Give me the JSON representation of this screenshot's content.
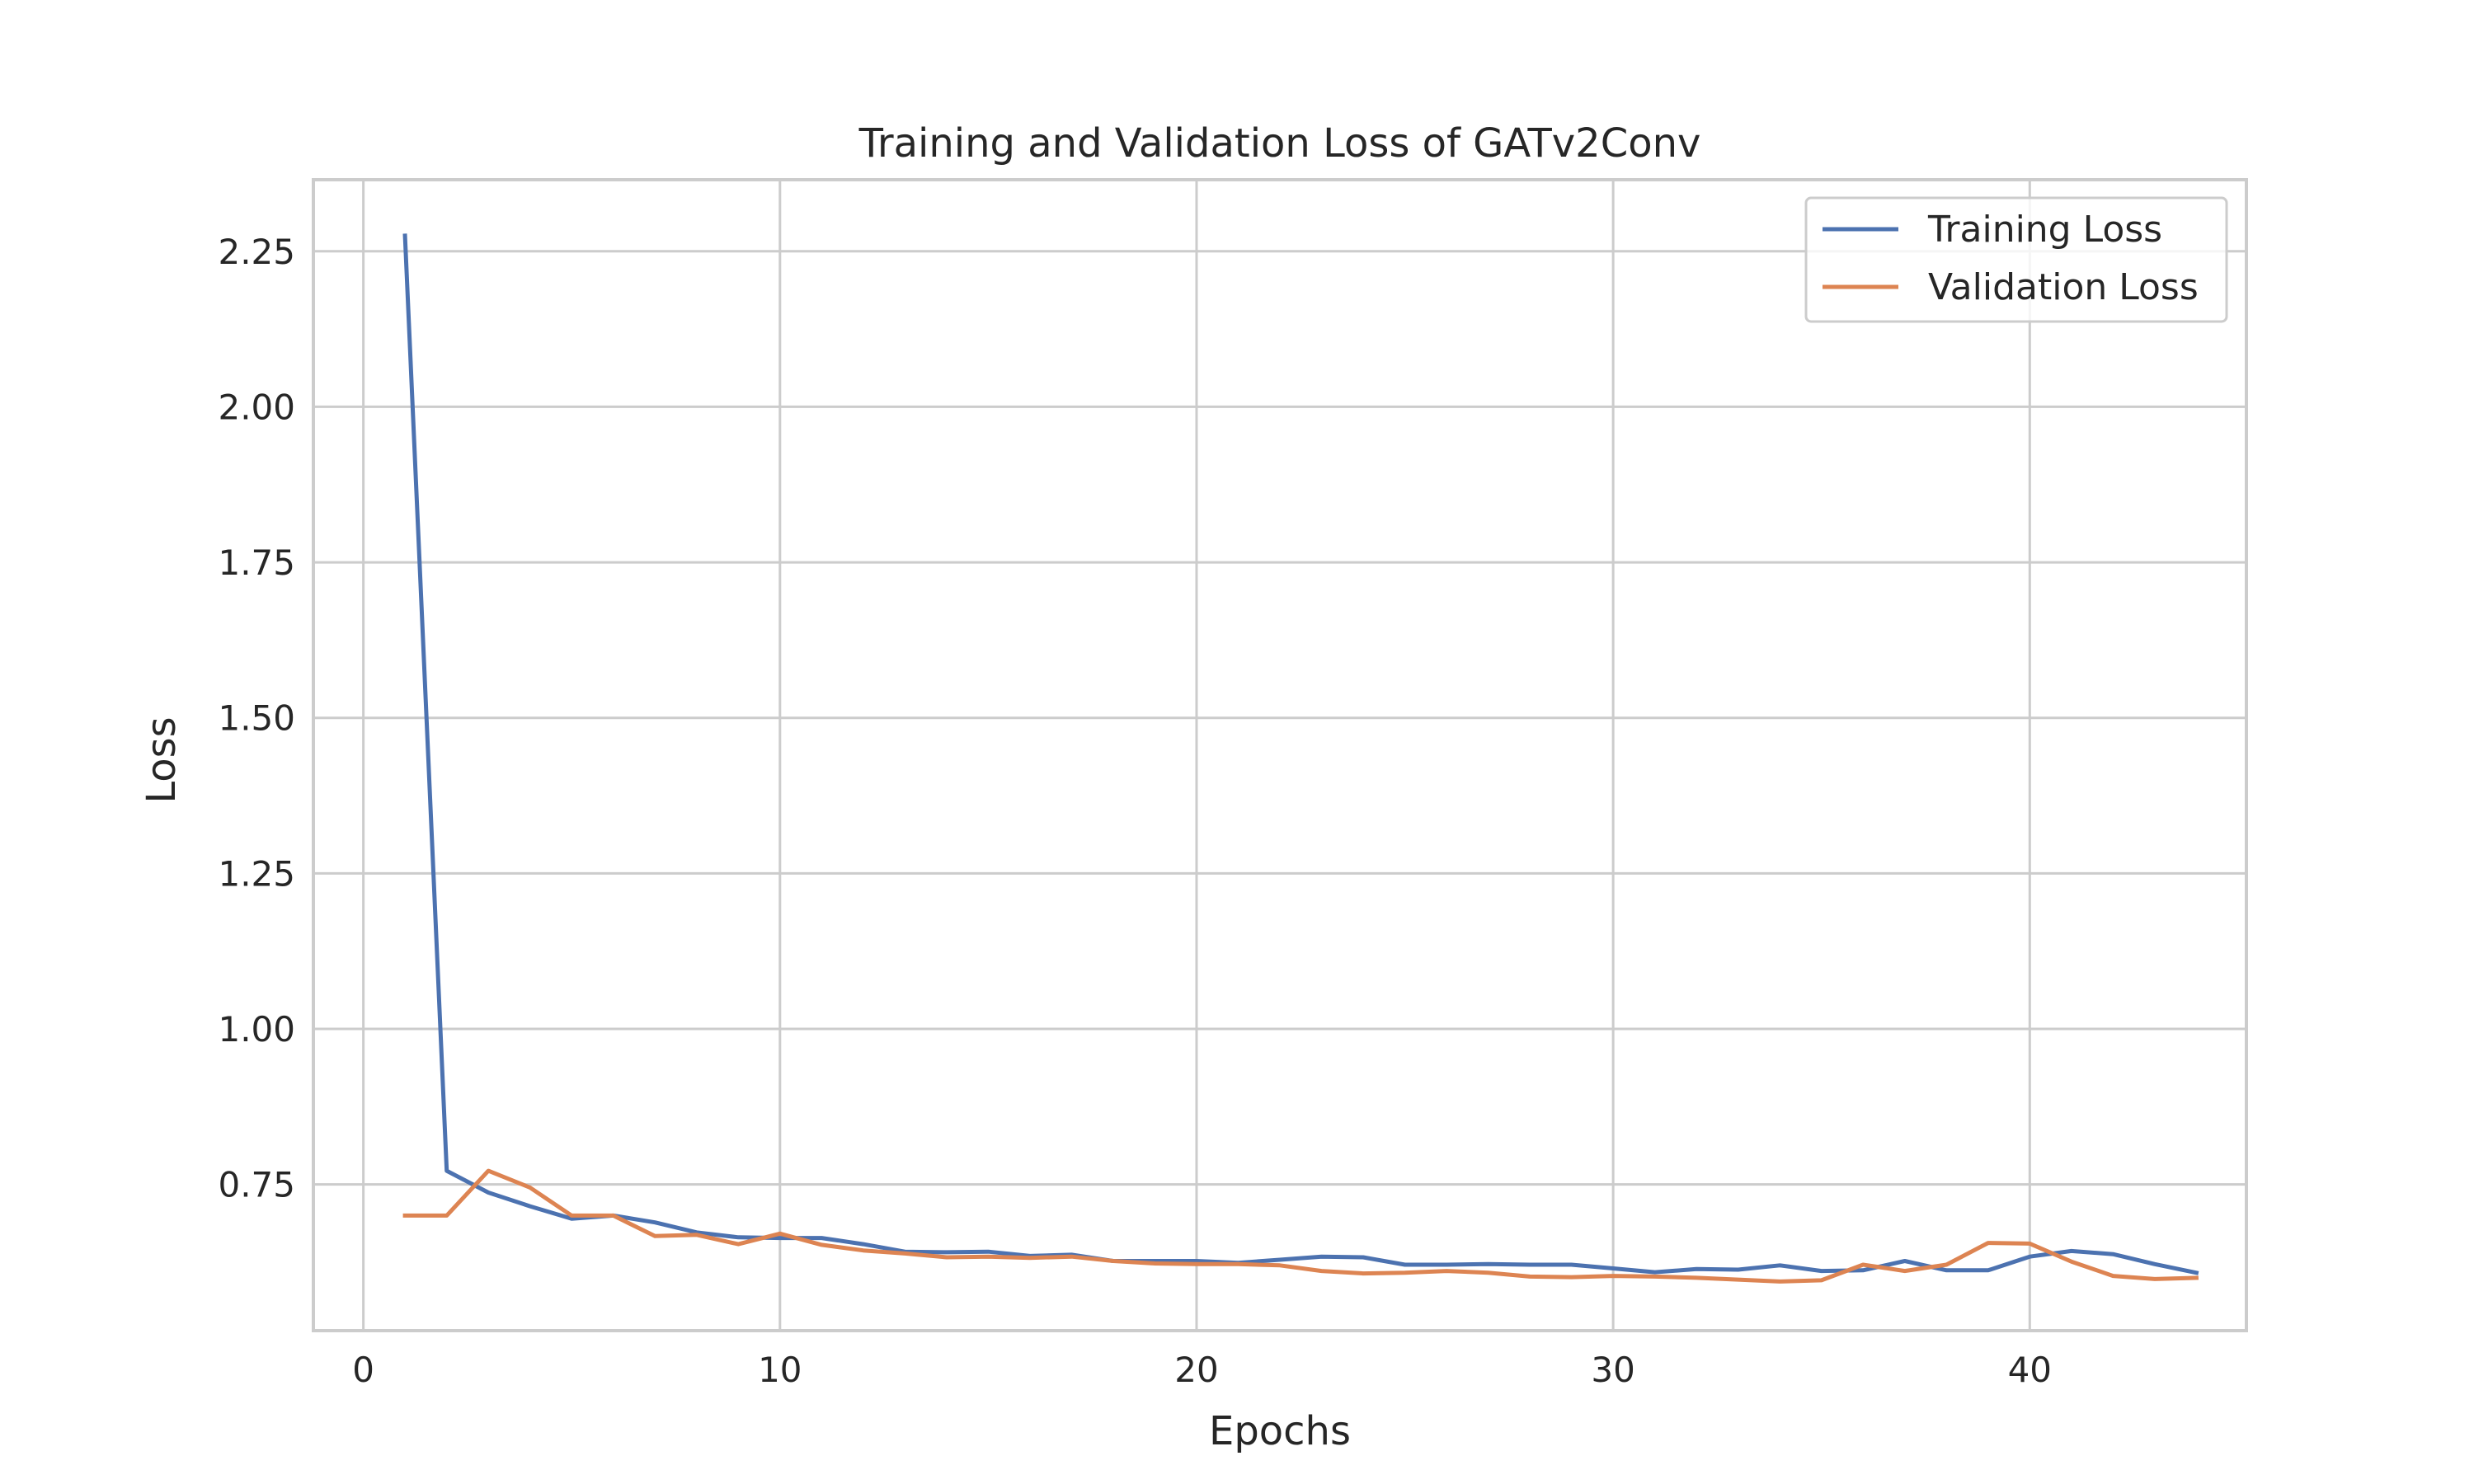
{
  "chart_data": {
    "type": "line",
    "title": "Training and Validation Loss of GATv2Conv",
    "xlabel": "Epochs",
    "ylabel": "Loss",
    "xlim": [
      -1.2,
      45.2
    ],
    "ylim": [
      0.515,
      2.365
    ],
    "xticks": [
      0,
      10,
      20,
      30,
      40
    ],
    "xtick_labels": [
      "0",
      "10",
      "20",
      "30",
      "40"
    ],
    "yticks": [
      0.75,
      1.0,
      1.25,
      1.5,
      1.75,
      2.0,
      2.25
    ],
    "ytick_labels": [
      "0.75",
      "1.00",
      "1.25",
      "1.50",
      "1.75",
      "2.00",
      "2.25"
    ],
    "grid": true,
    "legend_position": "top-right",
    "x": [
      1,
      2,
      3,
      4,
      5,
      6,
      7,
      8,
      9,
      10,
      11,
      12,
      13,
      14,
      15,
      16,
      17,
      18,
      19,
      20,
      21,
      22,
      23,
      24,
      25,
      26,
      27,
      28,
      29,
      30,
      31,
      32,
      33,
      34,
      35,
      36,
      37,
      38,
      39,
      40,
      41,
      42,
      43,
      44
    ],
    "series": [
      {
        "name": "Training Loss",
        "color": "#4c72b0",
        "values": [
          2.275,
          0.772,
          0.737,
          0.715,
          0.695,
          0.7,
          0.689,
          0.673,
          0.665,
          0.664,
          0.664,
          0.654,
          0.642,
          0.641,
          0.642,
          0.635,
          0.637,
          0.627,
          0.627,
          0.627,
          0.624,
          0.629,
          0.634,
          0.633,
          0.621,
          0.621,
          0.622,
          0.621,
          0.621,
          0.615,
          0.609,
          0.614,
          0.613,
          0.62,
          0.611,
          0.612,
          0.627,
          0.612,
          0.612,
          0.634,
          0.643,
          0.638,
          0.622,
          0.608
        ]
      },
      {
        "name": "Validation Loss",
        "color": "#dd8452",
        "values": [
          0.7,
          0.7,
          0.772,
          0.745,
          0.7,
          0.7,
          0.667,
          0.669,
          0.654,
          0.671,
          0.653,
          0.644,
          0.639,
          0.633,
          0.634,
          0.632,
          0.634,
          0.627,
          0.623,
          0.622,
          0.622,
          0.62,
          0.611,
          0.607,
          0.608,
          0.611,
          0.608,
          0.602,
          0.601,
          0.603,
          0.602,
          0.6,
          0.597,
          0.594,
          0.596,
          0.621,
          0.611,
          0.621,
          0.656,
          0.655,
          0.626,
          0.603,
          0.598,
          0.6
        ]
      }
    ]
  }
}
